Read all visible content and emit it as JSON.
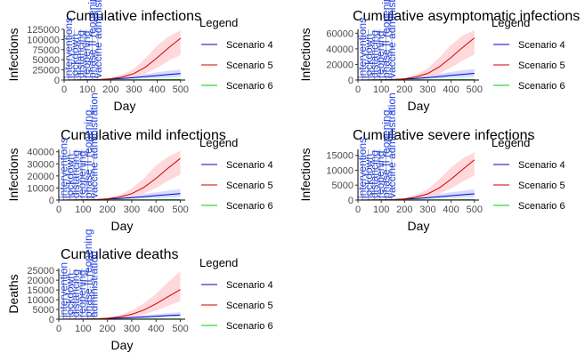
{
  "colors": {
    "scenario4": "#0000cc",
    "scenario5": "#cc0000",
    "scenario6": "#00cc00",
    "band4": "#c8ccff",
    "band5": "#ffc8cc",
    "band6": "#c8ffcc",
    "annotation": "#1f3fe0"
  },
  "chart_data": [
    {
      "type": "line",
      "title": "Cumulative infections",
      "xlabel": "Day",
      "ylabel": "Infections",
      "xlim": [
        0,
        520
      ],
      "ylim": [
        0,
        125000
      ],
      "xticks": [
        0,
        100,
        200,
        300,
        400,
        500
      ],
      "yticks": [
        0,
        25000,
        50000,
        75000,
        100000,
        125000
      ],
      "ytick_labels": [
        "0",
        "25000",
        "50000",
        "75000",
        "100000",
        "125000"
      ],
      "annotations": [
        {
          "x": 20,
          "text": "interventions"
        },
        {
          "x": 45,
          "text": "lockdown"
        },
        {
          "x": 70,
          "text": "distancing"
        },
        {
          "x": 95,
          "text": "reopening"
        },
        {
          "x": 120,
          "text": "phase II reopening"
        },
        {
          "x": 145,
          "text": "vaccine administration"
        }
      ],
      "legend": {
        "title": "Legend",
        "placement": "right"
      },
      "x": [
        0,
        50,
        100,
        150,
        200,
        250,
        300,
        350,
        400,
        450,
        500
      ],
      "series": [
        {
          "name": "Scenario 4",
          "color_key": "scenario4",
          "band_key": "band4",
          "values": [
            0,
            200,
            500,
            1200,
            2500,
            4000,
            6000,
            8500,
            11000,
            13500,
            16000
          ],
          "lower": [
            0,
            150,
            350,
            800,
            1500,
            2200,
            3000,
            4000,
            5000,
            6000,
            7000
          ],
          "upper": [
            0,
            300,
            800,
            2200,
            4500,
            7500,
            11000,
            15000,
            19000,
            23000,
            26000
          ]
        },
        {
          "name": "Scenario 5",
          "color_key": "scenario5",
          "band_key": "band5",
          "values": [
            0,
            150,
            400,
            1000,
            3000,
            7500,
            16000,
            32000,
            55000,
            80000,
            103000
          ],
          "lower": [
            0,
            100,
            300,
            700,
            1800,
            4000,
            8000,
            16000,
            30000,
            48000,
            62000
          ],
          "upper": [
            0,
            250,
            600,
            1600,
            5000,
            13000,
            28000,
            54000,
            85000,
            108000,
            123000
          ]
        },
        {
          "name": "Scenario 6",
          "color_key": "scenario6",
          "band_key": "band6",
          "values": [
            0,
            100,
            200,
            300,
            400,
            500,
            600,
            700,
            800,
            900,
            1000
          ],
          "lower": [
            0,
            50,
            100,
            150,
            200,
            250,
            300,
            350,
            400,
            450,
            500
          ],
          "upper": [
            0,
            200,
            400,
            600,
            800,
            1000,
            1200,
            1400,
            1600,
            1800,
            2000
          ]
        }
      ]
    },
    {
      "type": "line",
      "title": "Cumulative asymptomatic infections",
      "xlabel": "Day",
      "ylabel": "Infections",
      "xlim": [
        0,
        520
      ],
      "ylim": [
        0,
        65000
      ],
      "xticks": [
        0,
        100,
        200,
        300,
        400,
        500
      ],
      "yticks": [
        0,
        20000,
        40000,
        60000
      ],
      "ytick_labels": [
        "0",
        "20000",
        "40000",
        "60000"
      ],
      "annotations": [
        {
          "x": 20,
          "text": "interventions"
        },
        {
          "x": 45,
          "text": "lockdown"
        },
        {
          "x": 70,
          "text": "distancing"
        },
        {
          "x": 95,
          "text": "reopening"
        },
        {
          "x": 120,
          "text": "phase II reopening"
        },
        {
          "x": 145,
          "text": "vaccine administration"
        }
      ],
      "legend": {
        "title": "Legend",
        "placement": "right"
      },
      "x": [
        0,
        50,
        100,
        150,
        200,
        250,
        300,
        350,
        400,
        450,
        500
      ],
      "series": [
        {
          "name": "Scenario 4",
          "color_key": "scenario4",
          "band_key": "band4",
          "values": [
            0,
            100,
            300,
            700,
            1300,
            2100,
            3200,
            4500,
            6000,
            7300,
            8500
          ],
          "lower": [
            0,
            80,
            200,
            450,
            800,
            1200,
            1700,
            2200,
            2800,
            3300,
            3800
          ],
          "upper": [
            0,
            150,
            450,
            1200,
            2400,
            4000,
            6000,
            8000,
            10500,
            12500,
            14000
          ]
        },
        {
          "name": "Scenario 5",
          "color_key": "scenario5",
          "band_key": "band5",
          "values": [
            0,
            80,
            200,
            500,
            1600,
            4000,
            8500,
            17000,
            29000,
            42000,
            54000
          ],
          "lower": [
            0,
            50,
            150,
            350,
            900,
            2100,
            4300,
            8500,
            16000,
            25000,
            33000
          ],
          "upper": [
            0,
            130,
            300,
            850,
            2600,
            6800,
            15000,
            29000,
            45000,
            57000,
            64000
          ]
        },
        {
          "name": "Scenario 6",
          "color_key": "scenario6",
          "band_key": "band6",
          "values": [
            0,
            50,
            100,
            150,
            200,
            250,
            300,
            350,
            400,
            450,
            500
          ],
          "lower": [
            0,
            25,
            50,
            75,
            100,
            125,
            150,
            175,
            200,
            225,
            250
          ],
          "upper": [
            0,
            100,
            200,
            300,
            400,
            500,
            600,
            700,
            800,
            900,
            1000
          ]
        }
      ]
    },
    {
      "type": "line",
      "title": "Cumulative mild infections",
      "xlabel": "Day",
      "ylabel": "Infections",
      "xlim": [
        0,
        520
      ],
      "ylim": [
        0,
        42000
      ],
      "xticks": [
        0,
        100,
        200,
        300,
        400,
        500
      ],
      "yticks": [
        0,
        10000,
        20000,
        30000,
        40000
      ],
      "ytick_labels": [
        "0",
        "10000",
        "20000",
        "30000",
        "40000"
      ],
      "annotations": [
        {
          "x": 20,
          "text": "interventions"
        },
        {
          "x": 45,
          "text": "lockdown"
        },
        {
          "x": 70,
          "text": "distancing"
        },
        {
          "x": 95,
          "text": "reopening"
        },
        {
          "x": 120,
          "text": "phase II reopening"
        },
        {
          "x": 145,
          "text": "vaccine administration"
        }
      ],
      "legend": {
        "title": "Legend",
        "placement": "right"
      },
      "x": [
        0,
        50,
        100,
        150,
        200,
        250,
        300,
        350,
        400,
        450,
        500
      ],
      "series": [
        {
          "name": "Scenario 4",
          "color_key": "scenario4",
          "band_key": "band4",
          "values": [
            0,
            60,
            180,
            400,
            800,
            1300,
            2000,
            2800,
            3700,
            4500,
            5300
          ],
          "lower": [
            0,
            40,
            120,
            260,
            500,
            750,
            1050,
            1400,
            1750,
            2100,
            2400
          ],
          "upper": [
            0,
            90,
            280,
            700,
            1500,
            2500,
            3700,
            5000,
            6500,
            7800,
            9000
          ]
        },
        {
          "name": "Scenario 5",
          "color_key": "scenario5",
          "band_key": "band5",
          "values": [
            0,
            50,
            130,
            330,
            1000,
            2500,
            5300,
            10500,
            18000,
            26500,
            34500
          ],
          "lower": [
            0,
            30,
            90,
            230,
            600,
            1300,
            2700,
            5300,
            10000,
            16000,
            21000
          ],
          "upper": [
            0,
            80,
            200,
            550,
            1700,
            4300,
            9500,
            18000,
            28500,
            36000,
            41000
          ]
        },
        {
          "name": "Scenario 6",
          "color_key": "scenario6",
          "band_key": "band6",
          "values": [
            0,
            30,
            60,
            90,
            120,
            150,
            180,
            210,
            240,
            270,
            300
          ],
          "lower": [
            0,
            15,
            30,
            45,
            60,
            75,
            90,
            105,
            120,
            135,
            150
          ],
          "upper": [
            0,
            60,
            120,
            180,
            240,
            300,
            360,
            420,
            480,
            540,
            600
          ]
        }
      ]
    },
    {
      "type": "line",
      "title": "Cumulative severe infections",
      "xlabel": "Day",
      "ylabel": "Infections",
      "xlim": [
        0,
        520
      ],
      "ylim": [
        0,
        17000
      ],
      "xticks": [
        0,
        100,
        200,
        300,
        400,
        500
      ],
      "yticks": [
        0,
        5000,
        10000,
        15000
      ],
      "ytick_labels": [
        "0",
        "5000",
        "10000",
        "15000"
      ],
      "annotations": [
        {
          "x": 20,
          "text": "interventions"
        },
        {
          "x": 45,
          "text": "lockdown"
        },
        {
          "x": 70,
          "text": "distancing"
        },
        {
          "x": 95,
          "text": "reopening"
        },
        {
          "x": 120,
          "text": "phase II reopening"
        },
        {
          "x": 145,
          "text": "vaccine administration"
        }
      ],
      "legend": {
        "title": "Legend",
        "placement": "right"
      },
      "x": [
        0,
        50,
        100,
        150,
        200,
        250,
        300,
        350,
        400,
        450,
        500
      ],
      "series": [
        {
          "name": "Scenario 4",
          "color_key": "scenario4",
          "band_key": "band4",
          "values": [
            0,
            25,
            70,
            160,
            320,
            520,
            780,
            1100,
            1450,
            1800,
            2100
          ],
          "lower": [
            0,
            15,
            45,
            100,
            200,
            300,
            420,
            560,
            700,
            840,
            960
          ],
          "upper": [
            0,
            40,
            110,
            280,
            600,
            1000,
            1500,
            2000,
            2600,
            3100,
            3600
          ]
        },
        {
          "name": "Scenario 5",
          "color_key": "scenario5",
          "band_key": "band5",
          "values": [
            0,
            20,
            50,
            130,
            400,
            1000,
            2100,
            4100,
            7000,
            10300,
            13500
          ],
          "lower": [
            0,
            12,
            35,
            90,
            240,
            520,
            1050,
            2100,
            3900,
            6200,
            8200
          ],
          "upper": [
            0,
            32,
            80,
            220,
            680,
            1700,
            3700,
            7000,
            11000,
            14000,
            16000
          ]
        },
        {
          "name": "Scenario 6",
          "color_key": "scenario6",
          "band_key": "band6",
          "values": [
            0,
            12,
            24,
            36,
            48,
            60,
            72,
            84,
            96,
            108,
            120
          ],
          "lower": [
            0,
            6,
            12,
            18,
            24,
            30,
            36,
            42,
            48,
            54,
            60
          ],
          "upper": [
            0,
            24,
            48,
            72,
            96,
            120,
            144,
            168,
            192,
            216,
            240
          ]
        }
      ]
    },
    {
      "type": "line",
      "title": "Cumulative deaths",
      "xlabel": "Day",
      "ylabel": "Deaths",
      "xlim": [
        0,
        520
      ],
      "ylim": [
        0,
        26000
      ],
      "xticks": [
        0,
        100,
        200,
        300,
        400,
        500
      ],
      "yticks": [
        0,
        5000,
        10000,
        15000,
        20000,
        25000
      ],
      "ytick_labels": [
        "0",
        "5000",
        "10000",
        "15000",
        "20000",
        "25000"
      ],
      "annotations": [
        {
          "x": 20,
          "text": "intervention"
        },
        {
          "x": 45,
          "text": "lockdown"
        },
        {
          "x": 70,
          "text": "distancing"
        },
        {
          "x": 95,
          "text": "reopening"
        },
        {
          "x": 120,
          "text": "phase II reopening"
        },
        {
          "x": 145,
          "text": "administration"
        }
      ],
      "legend": {
        "title": "Legend",
        "placement": "right"
      },
      "x": [
        0,
        50,
        100,
        150,
        200,
        250,
        300,
        350,
        400,
        450,
        500
      ],
      "series": [
        {
          "name": "Scenario 4",
          "color_key": "scenario4",
          "band_key": "band4",
          "values": [
            0,
            30,
            90,
            200,
            380,
            600,
            850,
            1150,
            1500,
            1850,
            2200
          ],
          "lower": [
            0,
            20,
            60,
            130,
            240,
            360,
            500,
            650,
            800,
            950,
            1100
          ],
          "upper": [
            0,
            45,
            140,
            330,
            650,
            1050,
            1550,
            2050,
            2600,
            3100,
            3600
          ]
        },
        {
          "name": "Scenario 5",
          "color_key": "scenario5",
          "band_key": "band5",
          "values": [
            0,
            25,
            60,
            160,
            500,
            1200,
            2500,
            4700,
            7900,
            11600,
            15200
          ],
          "lower": [
            0,
            15,
            40,
            110,
            300,
            650,
            1250,
            2400,
            4400,
            7000,
            9300
          ],
          "upper": [
            0,
            40,
            100,
            270,
            850,
            2100,
            4400,
            8200,
            13000,
            19000,
            24500
          ]
        },
        {
          "name": "Scenario 6",
          "color_key": "scenario6",
          "band_key": "band6",
          "values": [
            0,
            10,
            20,
            30,
            40,
            50,
            60,
            70,
            80,
            90,
            100
          ],
          "lower": [
            0,
            5,
            10,
            15,
            20,
            25,
            30,
            35,
            40,
            45,
            50
          ],
          "upper": [
            0,
            20,
            40,
            60,
            80,
            100,
            120,
            140,
            160,
            180,
            200
          ]
        }
      ]
    }
  ]
}
